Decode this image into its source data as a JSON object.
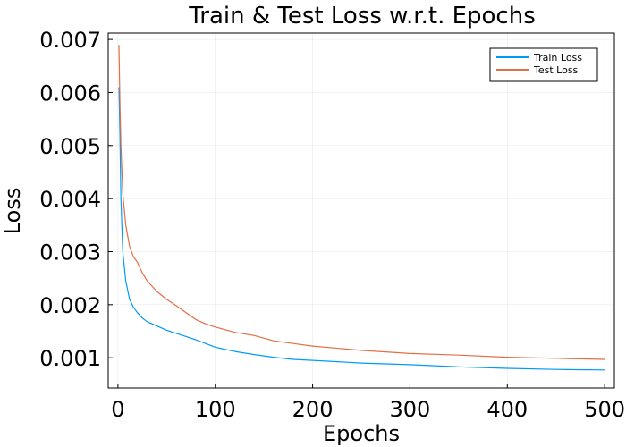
{
  "chart_data": {
    "type": "line",
    "title": "Train & Test Loss w.r.t. Epochs",
    "xlabel": "Epochs",
    "ylabel": "Loss",
    "xlim": [
      -10,
      510
    ],
    "ylim": [
      0.00043,
      0.00712
    ],
    "x_ticks": [
      0,
      100,
      200,
      300,
      400,
      500
    ],
    "x_tick_labels": [
      "0",
      "100",
      "200",
      "300",
      "400",
      "500"
    ],
    "y_ticks": [
      0.001,
      0.002,
      0.003,
      0.004,
      0.005,
      0.006,
      0.007
    ],
    "y_tick_labels": [
      "0.001",
      "0.002",
      "0.003",
      "0.004",
      "0.005",
      "0.006",
      "0.007"
    ],
    "grid": true,
    "legend_position": "top-right",
    "series": [
      {
        "name": "Train Loss",
        "color": "#009AFA",
        "x": [
          1,
          2,
          3,
          5,
          8,
          12,
          16,
          20,
          25,
          30,
          40,
          50,
          60,
          70,
          80,
          90,
          100,
          120,
          140,
          160,
          180,
          200,
          250,
          300,
          350,
          400,
          450,
          500
        ],
        "values": [
          0.0061,
          0.0052,
          0.004,
          0.003,
          0.00245,
          0.0021,
          0.00195,
          0.00185,
          0.00175,
          0.00168,
          0.0016,
          0.00152,
          0.00146,
          0.0014,
          0.00134,
          0.00127,
          0.0012,
          0.00112,
          0.00106,
          0.00101,
          0.00097,
          0.00095,
          0.0009,
          0.00087,
          0.00083,
          0.0008,
          0.00078,
          0.00077
        ]
      },
      {
        "name": "Test Loss",
        "color": "#E26F46",
        "x": [
          1,
          2,
          3,
          5,
          8,
          12,
          16,
          20,
          25,
          30,
          40,
          50,
          60,
          70,
          80,
          90,
          100,
          120,
          140,
          160,
          180,
          200,
          250,
          300,
          350,
          400,
          450,
          500
        ],
        "values": [
          0.0069,
          0.0058,
          0.005,
          0.0041,
          0.0035,
          0.0031,
          0.0029,
          0.0028,
          0.0026,
          0.00245,
          0.00225,
          0.0021,
          0.00198,
          0.00185,
          0.00172,
          0.00164,
          0.00158,
          0.00148,
          0.00142,
          0.00132,
          0.00127,
          0.00122,
          0.00114,
          0.00108,
          0.00105,
          0.00101,
          0.00099,
          0.00097
        ]
      }
    ]
  }
}
